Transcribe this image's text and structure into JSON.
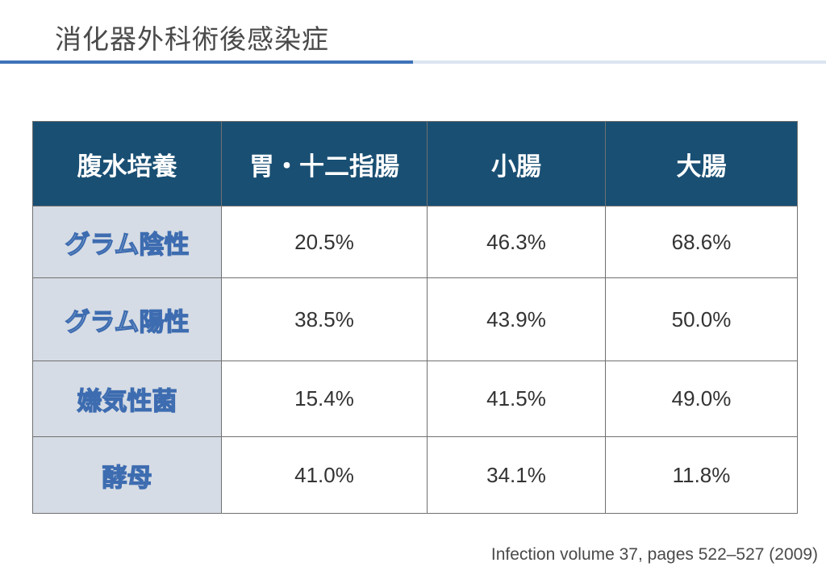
{
  "title": "消化器外科術後感染症",
  "table": {
    "headers": [
      "腹水培養",
      "胃・十二指腸",
      "小腸",
      "大腸"
    ],
    "rows": [
      {
        "label": "グラム陰性",
        "values": [
          "20.5%",
          "46.3%",
          "68.6%"
        ]
      },
      {
        "label": "グラム陽性",
        "values": [
          "38.5%",
          "43.9%",
          "50.0%"
        ]
      },
      {
        "label": "嫌気性菌",
        "values": [
          "15.4%",
          "41.5%",
          "49.0%"
        ]
      },
      {
        "label": "酵母",
        "values": [
          "41.0%",
          "34.1%",
          "11.8%"
        ]
      }
    ]
  },
  "citation": "Infection volume 37, pages 522–527 (2009)",
  "colors": {
    "header_bg": "#194f73",
    "row_label_bg": "#d6dce5",
    "row_label_outline": "#3d6cb0",
    "accent_rule": "#3d72b8"
  }
}
